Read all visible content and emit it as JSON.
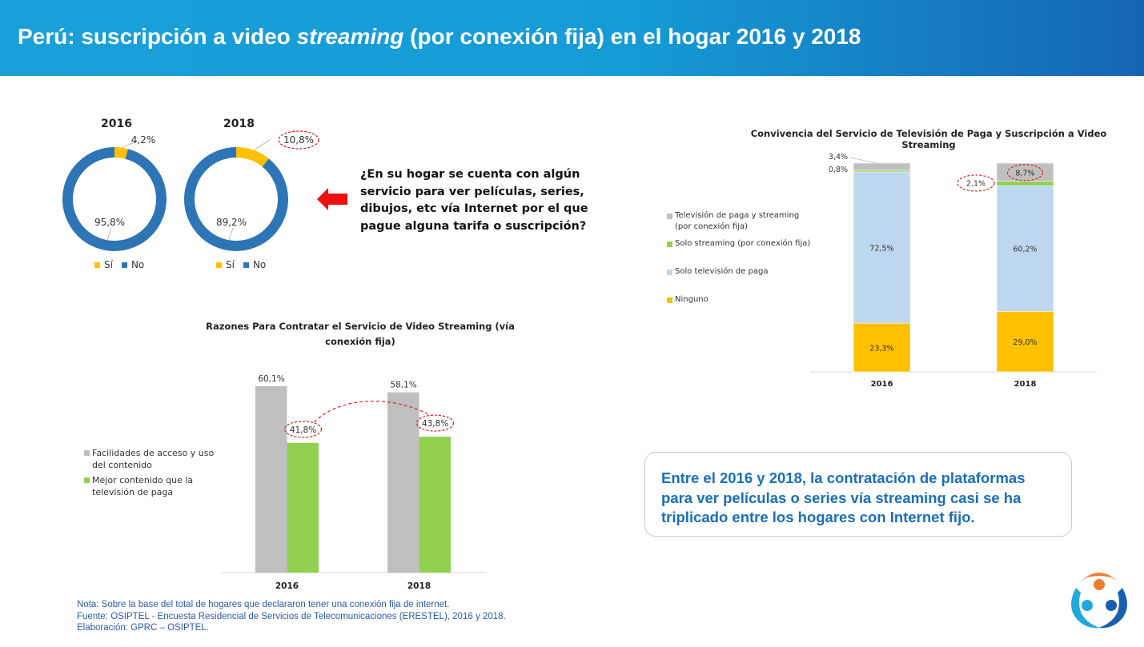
{
  "header": {
    "title_pre": "Perú: suscripción a video ",
    "title_em": "streaming",
    "title_post": " (por conexión fija) en el hogar 2016 y 2018"
  },
  "question": "¿En su hogar se cuenta con algún servicio para ver películas, series,  dibujos, etc vía Internet  por el que pague alguna tarifa o suscripción?",
  "callout": "Entre el 2016 y 2018, la contratación de plataformas para ver películas o series vía streaming casi se ha triplicado entre los hogares con Internet fijo.",
  "notes": [
    "Nota: Sobre la base del total de hogares que declararon tener una conexión fija de internet.",
    "Fuente: OSIPTEL - Encuesta Residencial de Servicios de Telecomunicaciones (ERESTEL), 2016 y 2018.",
    "Elaboración: GPRC – OSIPTEL."
  ],
  "colors": {
    "si": "#ffc000",
    "no": "#2e75b6",
    "gray": "#bfbfbf",
    "green": "#92d050",
    "lightblue": "#bdd7ee",
    "highlight": "#e02020"
  },
  "chart_data": [
    {
      "type": "pie",
      "title": "2016",
      "categories": [
        "Sí",
        "No"
      ],
      "values": [
        4.2,
        95.8
      ],
      "labels": [
        "4,2%",
        "95,8%"
      ],
      "legend": "bottom"
    },
    {
      "type": "pie",
      "title": "2018",
      "categories": [
        "Sí",
        "No"
      ],
      "values": [
        10.8,
        89.2
      ],
      "labels": [
        "10,8%",
        "89,2%"
      ],
      "highlighted": [
        "10,8%"
      ],
      "legend": "bottom"
    },
    {
      "type": "bar",
      "title": "Razones Para Contratar el Servicio de Video Streaming (vía conexión fija)",
      "categories": [
        "2016",
        "2018"
      ],
      "series": [
        {
          "name": "Facilidades de acceso y uso del contenido",
          "values": [
            60.1,
            58.1
          ],
          "labels": [
            "60,1%",
            "58,1%"
          ]
        },
        {
          "name": "Mejor contenido que la televisión de paga",
          "values": [
            41.8,
            43.8
          ],
          "labels": [
            "41,8%",
            "43,8%"
          ]
        }
      ],
      "highlighted": [
        "41,8%",
        "43,8%"
      ],
      "legend": "left",
      "grid": false
    },
    {
      "type": "bar",
      "stacked": true,
      "title": "Convivencia del Servicio de Televisión de Paga y Suscripción a Video Streaming",
      "categories": [
        "2016",
        "2018"
      ],
      "series": [
        {
          "name": "Ninguno",
          "values": [
            23.3,
            29.0
          ],
          "labels": [
            "23,3%",
            "29,0%"
          ]
        },
        {
          "name": "Solo televisión de paga",
          "values": [
            72.5,
            60.2
          ],
          "labels": [
            "72,5%",
            "60,2%"
          ]
        },
        {
          "name": "Solo streaming (por conexión fija)",
          "values": [
            0.8,
            2.1
          ],
          "labels": [
            "0,8%",
            "2,1%"
          ]
        },
        {
          "name": "Televisión de paga y streaming (por conexión fija)",
          "values": [
            3.4,
            8.7
          ],
          "labels": [
            "3,4%",
            "8,7%"
          ]
        }
      ],
      "highlighted": [
        "2,1%",
        "8,7%"
      ],
      "legend": "left",
      "grid": false
    }
  ]
}
